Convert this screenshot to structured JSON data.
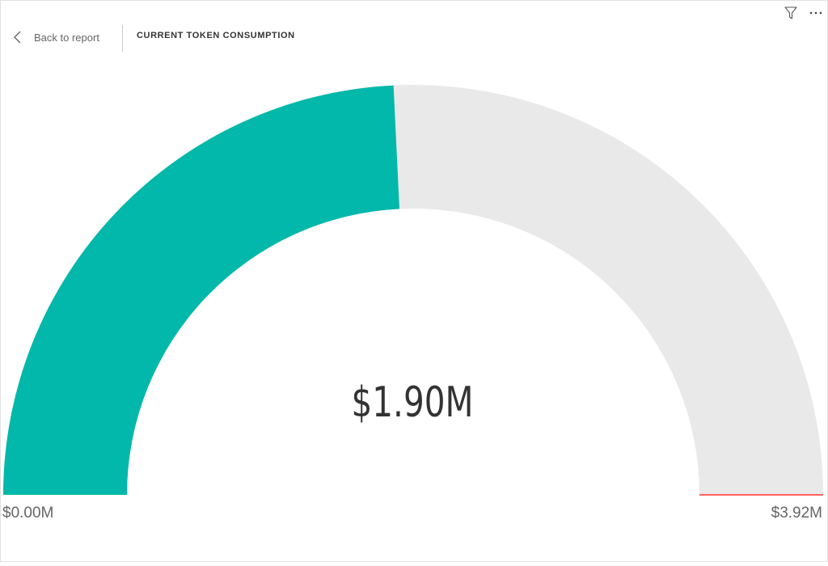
{
  "header": {
    "back_label": "Back to report",
    "title": "CURRENT TOKEN CONSUMPTION"
  },
  "icons": {
    "back": "chevron-left-icon",
    "filter": "filter-icon",
    "more": "more-options-icon"
  },
  "colors": {
    "fill": "#01B8AA",
    "track": "#E9E9E9",
    "target": "#FD625E"
  },
  "chart_data": {
    "type": "gauge",
    "title": "CURRENT TOKEN CONSUMPTION",
    "value": 1.9,
    "min": 0.0,
    "max": 3.92,
    "target": 3.92,
    "unit": "$M",
    "value_label": "$1.90M",
    "min_label": "$0.00M",
    "max_label": "$3.92M"
  }
}
